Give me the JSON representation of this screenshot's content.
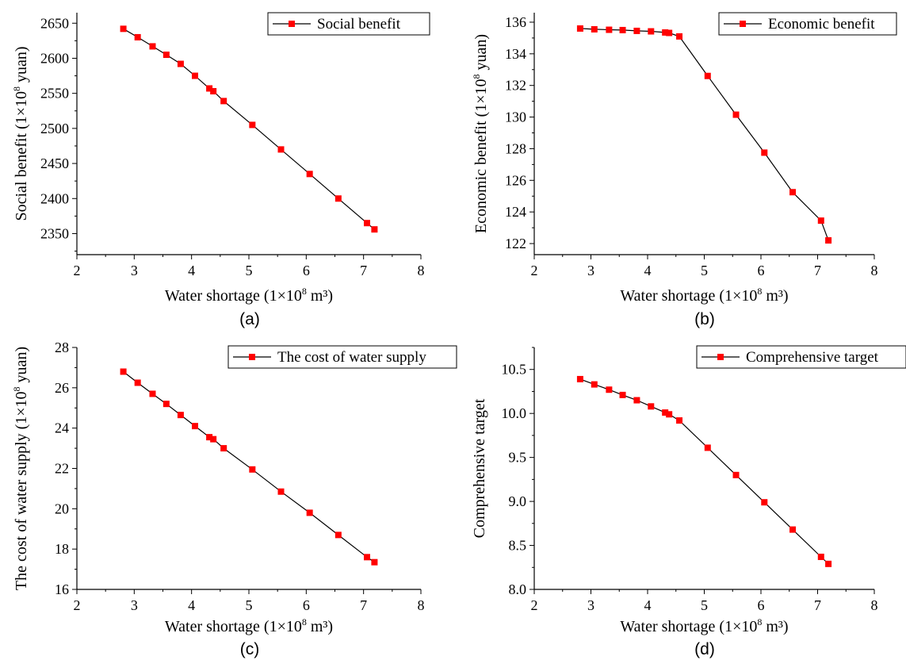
{
  "colors": {
    "marker": "#ff0000",
    "line": "#000000"
  },
  "chart_data": [
    {
      "type": "line",
      "panel_label": "(a)",
      "xlabel": {
        "pre": "Water shortage (1×10",
        "sup": "8",
        "post": " m³)"
      },
      "ylabel": {
        "pre": "Social benefit (1×10",
        "sup": "8",
        "post": " yuan)"
      },
      "xlim": [
        2,
        8
      ],
      "ylim": [
        2320,
        2665
      ],
      "xticks": [
        "2",
        "3",
        "4",
        "5",
        "6",
        "7",
        "8"
      ],
      "yticks": [
        "2350",
        "2400",
        "2450",
        "2500",
        "2550",
        "2600",
        "2650"
      ],
      "legend_position": "top-right",
      "series": [
        {
          "name": "Social benefit",
          "x": [
            2.81,
            3.06,
            3.32,
            3.56,
            3.81,
            4.06,
            4.31,
            4.38,
            4.56,
            5.06,
            5.56,
            6.06,
            6.56,
            7.06,
            7.19
          ],
          "y": [
            2642,
            2630,
            2617,
            2605,
            2592,
            2575,
            2557,
            2553,
            2539,
            2505,
            2470,
            2435,
            2400,
            2365,
            2356
          ]
        }
      ]
    },
    {
      "type": "line",
      "panel_label": "(b)",
      "xlabel": {
        "pre": "Water shortage (1×10",
        "sup": "8",
        "post": " m³)"
      },
      "ylabel": {
        "pre": "Economic benefit (1×10",
        "sup": "8",
        "post": " yuan)"
      },
      "xlim": [
        2,
        8
      ],
      "ylim": [
        121.3,
        136.6
      ],
      "xticks": [
        "2",
        "3",
        "4",
        "5",
        "6",
        "7",
        "8"
      ],
      "yticks": [
        "122",
        "124",
        "126",
        "128",
        "130",
        "132",
        "134",
        "136"
      ],
      "legend_position": "top-right",
      "series": [
        {
          "name": "Economic benefit",
          "x": [
            2.81,
            3.06,
            3.32,
            3.56,
            3.81,
            4.06,
            4.31,
            4.38,
            4.56,
            5.06,
            5.56,
            6.06,
            6.56,
            7.06,
            7.19
          ],
          "y": [
            135.6,
            135.55,
            135.52,
            135.5,
            135.45,
            135.42,
            135.35,
            135.32,
            135.1,
            132.6,
            130.15,
            127.75,
            125.25,
            123.45,
            122.2
          ]
        }
      ]
    },
    {
      "type": "line",
      "panel_label": "(c)",
      "xlabel": {
        "pre": "Water shortage (1×10",
        "sup": "8",
        "post": " m³)"
      },
      "ylabel": {
        "pre": "The cost of water supply (1×10",
        "sup": "8",
        "post": " yuan)"
      },
      "xlim": [
        2,
        8
      ],
      "ylim": [
        16,
        28
      ],
      "xticks": [
        "2",
        "3",
        "4",
        "5",
        "6",
        "7",
        "8"
      ],
      "yticks": [
        "16",
        "18",
        "20",
        "22",
        "24",
        "26",
        "28"
      ],
      "legend_position": "top-right",
      "series": [
        {
          "name": "The cost of water supply",
          "x": [
            2.81,
            3.06,
            3.32,
            3.56,
            3.81,
            4.06,
            4.31,
            4.38,
            4.56,
            5.06,
            5.56,
            6.06,
            6.56,
            7.06,
            7.19
          ],
          "y": [
            26.8,
            26.25,
            25.7,
            25.2,
            24.65,
            24.1,
            23.55,
            23.45,
            23.0,
            21.95,
            20.85,
            19.8,
            18.7,
            17.6,
            17.35
          ]
        }
      ]
    },
    {
      "type": "line",
      "panel_label": "(d)",
      "xlabel": {
        "pre": "Water shortage (1×10",
        "sup": "8",
        "post": " m³)"
      },
      "ylabel": {
        "pre": "Comprehensive target",
        "sup": "",
        "post": ""
      },
      "xlim": [
        2,
        8
      ],
      "ylim": [
        8.0,
        10.75
      ],
      "xticks": [
        "2",
        "3",
        "4",
        "5",
        "6",
        "7",
        "8"
      ],
      "yticks": [
        "8.0",
        "8.5",
        "9.0",
        "9.5",
        "10.0",
        "10.5"
      ],
      "legend_position": "top-right",
      "series": [
        {
          "name": "Comprehensive target",
          "x": [
            2.81,
            3.06,
            3.32,
            3.56,
            3.81,
            4.06,
            4.31,
            4.38,
            4.56,
            5.06,
            5.56,
            6.06,
            6.56,
            7.06,
            7.19
          ],
          "y": [
            10.39,
            10.33,
            10.27,
            10.21,
            10.15,
            10.08,
            10.01,
            9.99,
            9.92,
            9.61,
            9.3,
            8.99,
            8.68,
            8.37,
            8.29
          ]
        }
      ]
    }
  ]
}
